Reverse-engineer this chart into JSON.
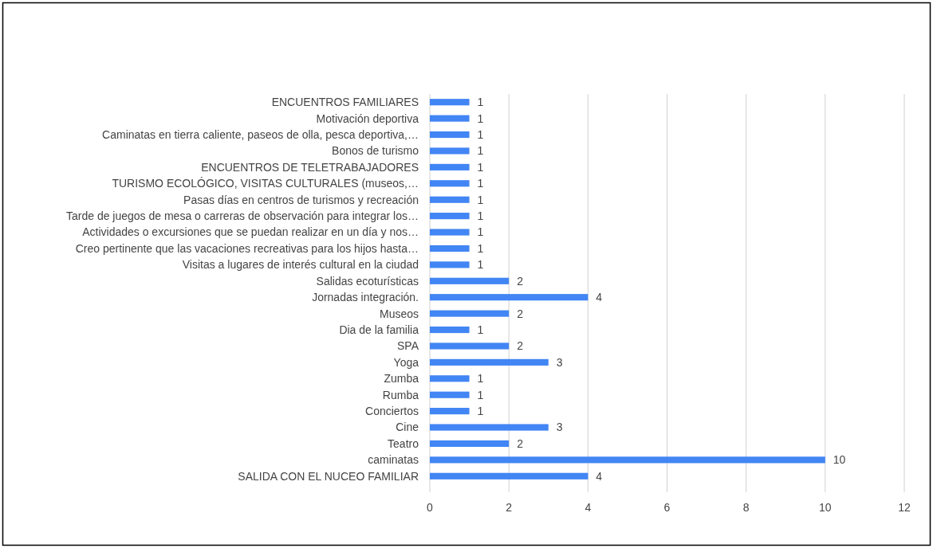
{
  "chart_data": {
    "type": "bar",
    "orientation": "horizontal",
    "categories": [
      "ENCUENTROS FAMILIARES",
      "Motivación deportiva",
      "Caminatas en tierra caliente, paseos de olla, pesca deportiva,…",
      "Bonos de turismo",
      "ENCUENTROS DE TELETRABAJADORES",
      "TURISMO ECOLÓGICO, VISITAS CULTURALES (museos,…",
      "Pasas días en centros de turismos y recreación",
      "Tarde de juegos de mesa o carreras de observación para integrar los…",
      "Actividades o excursiones que se puedan realizar en un día y nos…",
      "Creo pertinente que las vacaciones recreativas para los hijos hasta…",
      "Visitas a lugares de interés cultural en la ciudad",
      "Salidas ecoturísticas",
      "Jornadas integración.",
      "Museos",
      "Dia de la familia",
      "SPA",
      "Yoga",
      "Zumba",
      "Rumba",
      "Conciertos",
      "Cine",
      "Teatro",
      "caminatas",
      "SALIDA CON EL NUCEO FAMILIAR"
    ],
    "values": [
      1,
      1,
      1,
      1,
      1,
      1,
      1,
      1,
      1,
      1,
      1,
      2,
      4,
      2,
      1,
      2,
      3,
      1,
      1,
      1,
      3,
      2,
      10,
      4
    ],
    "color": "#4285f4",
    "xlim": [
      0,
      12
    ],
    "xticks": [
      0,
      2,
      4,
      6,
      8,
      10,
      12
    ],
    "grid": "x",
    "data_labels": true
  }
}
